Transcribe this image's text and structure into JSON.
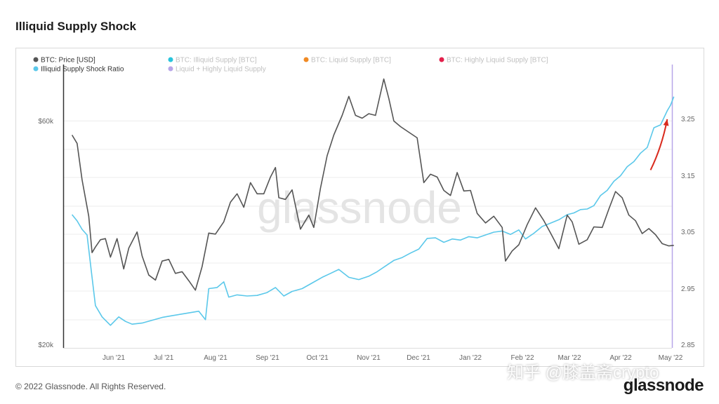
{
  "page": {
    "title": "Illiquid Supply Shock",
    "copyright": "© 2022 Glassnode. All Rights Reserved.",
    "brand": "glassnode",
    "watermark_center": "glassnode",
    "watermark_cn": "知乎 @膝盖斋crypto"
  },
  "legend": [
    {
      "label": "BTC: Price [USD]",
      "color": "#555555",
      "active": true
    },
    {
      "label": "BTC: Illiquid Supply [BTC]",
      "color": "#29c4dc",
      "active": false
    },
    {
      "label": "BTC: Liquid Supply [BTC]",
      "color": "#f08a24",
      "active": false
    },
    {
      "label": "BTC: Highly Liquid Supply [BTC]",
      "color": "#e3204b",
      "active": false
    },
    {
      "label": "Illiquid Supply Shock Ratio",
      "color": "#5bc8ea",
      "active": true
    },
    {
      "label": "Liquid + Highly Liquid Supply",
      "color": "#b7a6e8",
      "active": false
    }
  ],
  "chart_data": {
    "type": "line",
    "x_ticks": [
      "Jun '21",
      "Jul '21",
      "Aug '21",
      "Sep '21",
      "Oct '21",
      "Nov '21",
      "Dec '21",
      "Jan '22",
      "Feb '22",
      "Mar '22",
      "Apr '22",
      "May '22"
    ],
    "y_left_ticks": [
      "$60k",
      "$20k"
    ],
    "y_right_ticks": [
      "3.25",
      "3.15",
      "3.05",
      "2.95",
      "2.85"
    ],
    "y_right_range": [
      2.85,
      3.25
    ],
    "series": [
      {
        "name": "BTC: Price [USD]",
        "color": "#555555",
        "axis": "left",
        "points": [
          [
            "May 07 '21",
            57500
          ],
          [
            "May 10 '21",
            56000
          ],
          [
            "May 13 '21",
            49500
          ],
          [
            "May 17 '21",
            43000
          ],
          [
            "May 19 '21",
            36500
          ],
          [
            "May 21 '21",
            37500
          ],
          [
            "May 24 '21",
            38800
          ],
          [
            "May 27 '21",
            39000
          ],
          [
            "May 30 '21",
            35700
          ],
          [
            "Jun 03 '21",
            39000
          ],
          [
            "Jun 07 '21",
            33600
          ],
          [
            "Jun 10 '21",
            37300
          ],
          [
            "Jun 15 '21",
            40200
          ],
          [
            "Jun 18 '21",
            35900
          ],
          [
            "Jun 22 '21",
            32500
          ],
          [
            "Jun 26 '21",
            31600
          ],
          [
            "Jun 30 '21",
            35000
          ],
          [
            "Jul 04 '21",
            35300
          ],
          [
            "Jul 08 '21",
            32800
          ],
          [
            "Jul 12 '21",
            33100
          ],
          [
            "Jul 16 '21",
            31500
          ],
          [
            "Jul 20 '21",
            29800
          ],
          [
            "Jul 24 '21",
            34000
          ],
          [
            "Jul 28 '21",
            40000
          ],
          [
            "Aug 01 '21",
            39800
          ],
          [
            "Aug 06 '21",
            42000
          ],
          [
            "Aug 10 '21",
            45500
          ],
          [
            "Aug 14 '21",
            47000
          ],
          [
            "Aug 18 '21",
            44600
          ],
          [
            "Aug 22 '21",
            49000
          ],
          [
            "Aug 26 '21",
            47000
          ],
          [
            "Aug 30 '21",
            47000
          ],
          [
            "Sep 03 '21",
            50000
          ],
          [
            "Sep 06 '21",
            51700
          ],
          [
            "Sep 08 '21",
            46300
          ],
          [
            "Sep 12 '21",
            46000
          ],
          [
            "Sep 16 '21",
            47700
          ],
          [
            "Sep 21 '21",
            40700
          ],
          [
            "Sep 26 '21",
            43200
          ],
          [
            "Sep 29 '21",
            41000
          ],
          [
            "Oct 03 '21",
            48000
          ],
          [
            "Oct 07 '21",
            53800
          ],
          [
            "Oct 11 '21",
            57500
          ],
          [
            "Oct 16 '21",
            61000
          ],
          [
            "Oct 20 '21",
            64400
          ],
          [
            "Oct 24 '21",
            61000
          ],
          [
            "Oct 28 '21",
            60500
          ],
          [
            "Nov 01 '21",
            61300
          ],
          [
            "Nov 05 '21",
            61000
          ],
          [
            "Nov 10 '21",
            67500
          ],
          [
            "Nov 13 '21",
            64000
          ],
          [
            "Nov 16 '21",
            60000
          ],
          [
            "Nov 20 '21",
            59000
          ],
          [
            "Nov 25 '21",
            58000
          ],
          [
            "Nov 30 '21",
            57000
          ],
          [
            "Dec 04 '21",
            49000
          ],
          [
            "Dec 08 '21",
            50500
          ],
          [
            "Dec 12 '21",
            50000
          ],
          [
            "Dec 16 '21",
            47600
          ],
          [
            "Dec 20 '21",
            46700
          ],
          [
            "Dec 24 '21",
            50800
          ],
          [
            "Dec 28 '21",
            47500
          ],
          [
            "Jan 01 '22",
            47600
          ],
          [
            "Jan 05 '22",
            43500
          ],
          [
            "Jan 10 '22",
            41800
          ],
          [
            "Jan 15 '22",
            43000
          ],
          [
            "Jan 20 '22",
            41000
          ],
          [
            "Jan 22 '22",
            35000
          ],
          [
            "Jan 26 '22",
            36800
          ],
          [
            "Jan 30 '22",
            37900
          ],
          [
            "Feb 04 '22",
            41500
          ],
          [
            "Feb 09 '22",
            44500
          ],
          [
            "Feb 14 '22",
            42200
          ],
          [
            "Feb 18 '22",
            40000
          ],
          [
            "Feb 23 '22",
            37200
          ],
          [
            "Feb 28 '22",
            43200
          ],
          [
            "Mar 03 '22",
            42000
          ],
          [
            "Mar 07 '22",
            38000
          ],
          [
            "Mar 12 '22",
            38800
          ],
          [
            "Mar 16 '22",
            41100
          ],
          [
            "Mar 21 '22",
            41000
          ],
          [
            "Mar 25 '22",
            44300
          ],
          [
            "Mar 29 '22",
            47400
          ],
          [
            "Apr 02 '22",
            46300
          ],
          [
            "Apr 06 '22",
            43200
          ],
          [
            "Apr 10 '22",
            42200
          ],
          [
            "Apr 14 '22",
            39900
          ],
          [
            "Apr 18 '22",
            40800
          ],
          [
            "Apr 22 '22",
            39700
          ],
          [
            "Apr 26 '22",
            38100
          ],
          [
            "Apr 30 '22",
            37700
          ],
          [
            "May 03 '22",
            37800
          ]
        ]
      },
      {
        "name": "Illiquid Supply Shock Ratio",
        "color": "#5bc8ea",
        "axis": "right",
        "points": [
          [
            "May 07 '21",
            3.081
          ],
          [
            "May 10 '21",
            3.07
          ],
          [
            "May 13 '21",
            3.055
          ],
          [
            "May 16 '21",
            3.045
          ],
          [
            "May 19 '21",
            2.97
          ],
          [
            "May 21 '21",
            2.92
          ],
          [
            "May 25 '21",
            2.9
          ],
          [
            "May 30 '21",
            2.885
          ],
          [
            "Jun 04 '21",
            2.9
          ],
          [
            "Jun 08 '21",
            2.892
          ],
          [
            "Jun 12 '21",
            2.887
          ],
          [
            "Jun 18 '21",
            2.889
          ],
          [
            "Jun 24 '21",
            2.894
          ],
          [
            "Jun 30 '21",
            2.899
          ],
          [
            "Jul 06 '21",
            2.902
          ],
          [
            "Jul 12 '21",
            2.905
          ],
          [
            "Jul 18 '21",
            2.908
          ],
          [
            "Jul 22 '21",
            2.91
          ],
          [
            "Jul 26 '21",
            2.895
          ],
          [
            "Jul 28 '21",
            2.95
          ],
          [
            "Aug 02 '21",
            2.952
          ],
          [
            "Aug 06 '21",
            2.962
          ],
          [
            "Aug 09 '21",
            2.935
          ],
          [
            "Aug 14 '21",
            2.939
          ],
          [
            "Aug 20 '21",
            2.937
          ],
          [
            "Aug 26 '21",
            2.938
          ],
          [
            "Sep 01 '21",
            2.943
          ],
          [
            "Sep 06 '21",
            2.952
          ],
          [
            "Sep 11 '21",
            2.937
          ],
          [
            "Sep 16 '21",
            2.945
          ],
          [
            "Sep 22 '21",
            2.95
          ],
          [
            "Sep 28 '21",
            2.96
          ],
          [
            "Oct 04 '21",
            2.97
          ],
          [
            "Oct 09 '21",
            2.977
          ],
          [
            "Oct 14 '21",
            2.984
          ],
          [
            "Oct 20 '21",
            2.97
          ],
          [
            "Oct 26 '21",
            2.966
          ],
          [
            "Nov 01 '21",
            2.972
          ],
          [
            "Nov 06 '21",
            2.98
          ],
          [
            "Nov 11 '21",
            2.99
          ],
          [
            "Nov 16 '21",
            3.0
          ],
          [
            "Nov 21 '21",
            3.005
          ],
          [
            "Nov 26 '21",
            3.013
          ],
          [
            "Dec 01 '21",
            3.02
          ],
          [
            "Dec 06 '21",
            3.039
          ],
          [
            "Dec 11 '21",
            3.04
          ],
          [
            "Dec 16 '21",
            3.032
          ],
          [
            "Dec 21 '21",
            3.038
          ],
          [
            "Dec 26 '21",
            3.036
          ],
          [
            "Dec 31 '21",
            3.042
          ],
          [
            "Jan 05 '22",
            3.04
          ],
          [
            "Jan 10 '22",
            3.045
          ],
          [
            "Jan 15 '22",
            3.05
          ],
          [
            "Jan 20 '22",
            3.052
          ],
          [
            "Jan 25 '22",
            3.046
          ],
          [
            "Jan 30 '22",
            3.054
          ],
          [
            "Feb 03 '22",
            3.038
          ],
          [
            "Feb 08 '22",
            3.048
          ],
          [
            "Feb 13 '22",
            3.06
          ],
          [
            "Feb 18 '22",
            3.066
          ],
          [
            "Feb 23 '22",
            3.072
          ],
          [
            "Feb 28 '22",
            3.081
          ],
          [
            "Mar 04 '22",
            3.084
          ],
          [
            "Mar 08 '22",
            3.09
          ],
          [
            "Mar 12 '22",
            3.091
          ],
          [
            "Mar 16 '22",
            3.097
          ],
          [
            "Mar 20 '22",
            3.115
          ],
          [
            "Mar 24 '22",
            3.124
          ],
          [
            "Mar 28 '22",
            3.14
          ],
          [
            "Apr 01 '22",
            3.15
          ],
          [
            "Apr 05 '22",
            3.166
          ],
          [
            "Apr 09 '22",
            3.175
          ],
          [
            "Apr 13 '22",
            3.19
          ],
          [
            "Apr 17 '22",
            3.2
          ],
          [
            "Apr 21 '22",
            3.235
          ],
          [
            "Apr 25 '22",
            3.24
          ],
          [
            "Apr 29 '22",
            3.265
          ],
          [
            "May 01 '22",
            3.275
          ],
          [
            "May 03 '22",
            3.29
          ]
        ]
      }
    ],
    "annotations": [
      {
        "type": "arrow",
        "color": "#d92b1e",
        "from": [
          "Apr 19 '22",
          3.16
        ],
        "to": [
          "Apr 29 '22",
          3.25
        ]
      }
    ]
  }
}
